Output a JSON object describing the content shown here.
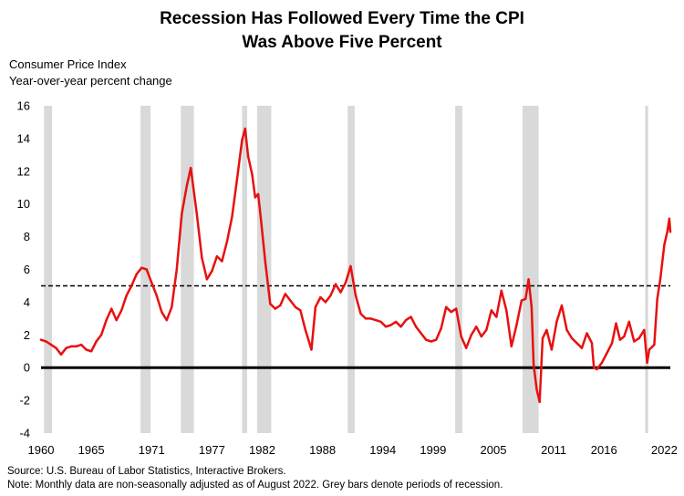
{
  "chart_data": {
    "type": "line",
    "title_lines": [
      "Recession Has Followed Every Time the CPI",
      "Was Above Five Percent"
    ],
    "ylabel_lines": [
      "Consumer Price Index",
      "Year-over-year percent change"
    ],
    "footer_lines": [
      "Source: U.S. Bureau of Labor Statistics, Interactive Brokers.",
      "Note: Monthly data are non-seasonally adjusted as of August 2022. Grey bars denote periods of recession."
    ],
    "ylim": [
      -4,
      16
    ],
    "yticks": [
      -4,
      -2,
      0,
      2,
      4,
      6,
      8,
      10,
      12,
      14,
      16
    ],
    "xlim": [
      1960,
      2022.6
    ],
    "xticks": [
      1960,
      1965,
      1971,
      1977,
      1982,
      1988,
      1994,
      1999,
      2005,
      2011,
      2016,
      2022
    ],
    "reference_line": {
      "value": 5,
      "style": "dashed"
    },
    "zero_line": true,
    "grid": false,
    "recessions": [
      [
        1960.3,
        1961.1
      ],
      [
        1969.9,
        1970.9
      ],
      [
        1973.9,
        1975.2
      ],
      [
        1980.0,
        1980.5
      ],
      [
        1981.5,
        1982.9
      ],
      [
        1990.5,
        1991.2
      ],
      [
        2001.2,
        2001.9
      ],
      [
        2007.9,
        2009.5
      ],
      [
        2020.1,
        2020.4
      ]
    ],
    "series": [
      {
        "color": "#e81010",
        "x": [
          1960.0,
          1960.5,
          1961.0,
          1961.5,
          1962.0,
          1962.5,
          1963.0,
          1963.5,
          1964.0,
          1964.5,
          1965.0,
          1965.5,
          1966.0,
          1966.5,
          1967.0,
          1967.5,
          1968.0,
          1968.5,
          1969.0,
          1969.5,
          1970.0,
          1970.5,
          1971.0,
          1971.5,
          1972.0,
          1972.5,
          1973.0,
          1973.5,
          1974.0,
          1974.5,
          1974.9,
          1975.5,
          1976.0,
          1976.5,
          1977.0,
          1977.5,
          1978.0,
          1978.5,
          1979.0,
          1979.5,
          1980.0,
          1980.3,
          1980.6,
          1981.0,
          1981.3,
          1981.6,
          1981.9,
          1982.3,
          1982.8,
          1983.3,
          1983.8,
          1984.3,
          1984.8,
          1985.3,
          1985.8,
          1986.3,
          1986.9,
          1987.3,
          1987.8,
          1988.3,
          1988.8,
          1989.3,
          1989.8,
          1990.3,
          1990.8,
          1991.3,
          1991.8,
          1992.3,
          1992.8,
          1993.3,
          1993.8,
          1994.3,
          1994.8,
          1995.3,
          1995.8,
          1996.3,
          1996.8,
          1997.3,
          1997.8,
          1998.3,
          1998.8,
          1999.3,
          1999.8,
          2000.3,
          2000.8,
          2001.3,
          2001.8,
          2002.3,
          2002.8,
          2003.3,
          2003.8,
          2004.3,
          2004.8,
          2005.3,
          2005.8,
          2006.3,
          2006.8,
          2007.3,
          2007.8,
          2008.2,
          2008.5,
          2008.8,
          2009.0,
          2009.3,
          2009.6,
          2009.9,
          2010.3,
          2010.8,
          2011.3,
          2011.8,
          2012.3,
          2012.8,
          2013.3,
          2013.8,
          2014.3,
          2014.8,
          2015.0,
          2015.3,
          2015.8,
          2016.3,
          2016.8,
          2017.2,
          2017.6,
          2018.0,
          2018.5,
          2019.0,
          2019.5,
          2020.0,
          2020.3,
          2020.5,
          2021.0,
          2021.3,
          2021.6,
          2022.0,
          2022.3,
          2022.5,
          2022.6
        ],
        "values": [
          1.7,
          1.6,
          1.4,
          1.2,
          0.8,
          1.2,
          1.3,
          1.3,
          1.4,
          1.1,
          1.0,
          1.6,
          2.0,
          2.9,
          3.6,
          2.9,
          3.5,
          4.4,
          5.0,
          5.7,
          6.1,
          6.0,
          5.2,
          4.4,
          3.4,
          2.9,
          3.7,
          6.0,
          9.4,
          11.1,
          12.2,
          9.4,
          6.7,
          5.4,
          5.9,
          6.8,
          6.5,
          7.7,
          9.2,
          11.5,
          13.9,
          14.6,
          12.9,
          11.8,
          10.4,
          10.6,
          8.9,
          6.5,
          3.9,
          3.6,
          3.8,
          4.5,
          4.1,
          3.7,
          3.5,
          2.3,
          1.1,
          3.7,
          4.3,
          4.0,
          4.4,
          5.1,
          4.6,
          5.2,
          6.2,
          4.4,
          3.3,
          3.0,
          3.0,
          2.9,
          2.8,
          2.5,
          2.6,
          2.8,
          2.5,
          2.9,
          3.1,
          2.5,
          2.1,
          1.7,
          1.6,
          1.7,
          2.4,
          3.7,
          3.4,
          3.6,
          1.9,
          1.2,
          2.0,
          2.5,
          1.9,
          2.3,
          3.5,
          3.1,
          4.7,
          3.5,
          1.3,
          2.6,
          4.1,
          4.2,
          5.4,
          3.7,
          0.2,
          -1.3,
          -2.1,
          1.8,
          2.3,
          1.1,
          2.8,
          3.8,
          2.3,
          1.8,
          1.5,
          1.2,
          2.1,
          1.5,
          0.0,
          -0.1,
          0.3,
          0.9,
          1.5,
          2.7,
          1.7,
          1.9,
          2.8,
          1.6,
          1.8,
          2.3,
          0.3,
          1.1,
          1.4,
          4.2,
          5.4,
          7.5,
          8.3,
          9.1,
          8.3
        ]
      }
    ]
  }
}
